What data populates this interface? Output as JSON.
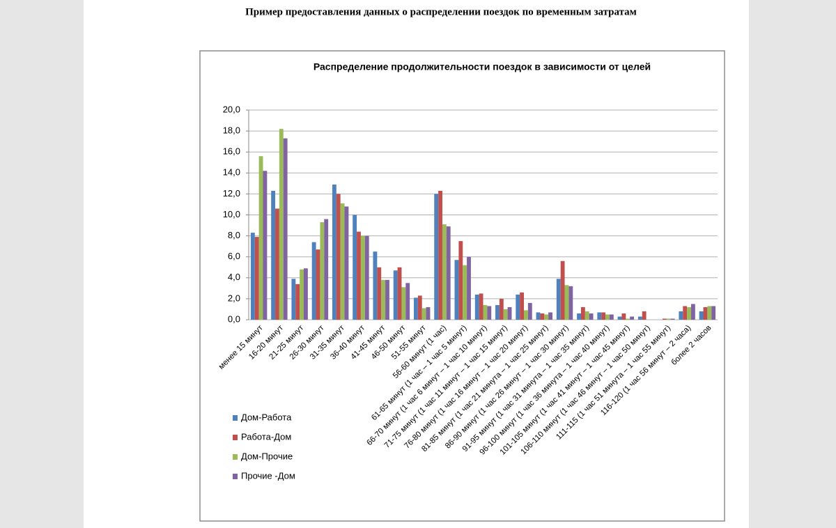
{
  "page_title": "Пример предоставления данных о распределении поездок по временным затратам",
  "chart_data": {
    "type": "bar",
    "title": "Распределение продолжительности поездок в зависимости от целей",
    "categories": [
      "менее 15 минут",
      "16-20 минут",
      "21-25 минут",
      "26-30 минут",
      "31-35 минут",
      "36-40 минут",
      "41-45 минут",
      "46-50 минут",
      "51-55 минут",
      "56-60 минут (1 час)",
      "61-65 минут (1 час – 1 час 5 минут)",
      "66-70 минут (1 час 6 минут – 1 час 10 минут)",
      "71-75 минут (1 час 11 минут – 1 час 15 минут)",
      "76-80 минут (1 час 16 минут – 1 час 20 минут)",
      "81-85 минут (1 час 21 минута – 1 час 25 минут)",
      "86-90 минут (1 час 26 минут – 1 час 30 минут)",
      "91-95 минут (1 час 31 минута – 1 час 35 минут)",
      "96-100 минут (1 час 36 минута – 1 час 40 минут)",
      "101-105 минут (1 час 41 минут – 1 час 45 минут)",
      "106-110 минут (1 час 46 минут – 1 час 50 минут)",
      "111-115 (1 час 51 минута – 1 час 55 минут)",
      "116-120 (1 час 56 минут – 2 часа)",
      "более 2 часов"
    ],
    "series": [
      {
        "name": "Дом-Работа",
        "color": "#4f81bd",
        "values": [
          8.3,
          12.3,
          3.9,
          7.4,
          12.9,
          10.0,
          6.5,
          4.7,
          2.1,
          12.0,
          5.7,
          2.4,
          1.4,
          2.4,
          0.7,
          3.9,
          0.6,
          0.7,
          0.3,
          0.3,
          0.0,
          0.8,
          0.8
        ]
      },
      {
        "name": "Работа-Дом",
        "color": "#c0504d",
        "values": [
          7.9,
          10.6,
          3.4,
          6.7,
          12.0,
          8.4,
          5.0,
          5.0,
          2.3,
          12.3,
          7.5,
          2.5,
          2.0,
          2.6,
          0.6,
          5.6,
          1.2,
          0.7,
          0.6,
          0.8,
          0.1,
          1.3,
          1.2
        ]
      },
      {
        "name": "Дом-Прочие",
        "color": "#9bbb59",
        "values": [
          15.6,
          18.2,
          4.8,
          9.3,
          11.1,
          8.0,
          3.8,
          3.1,
          1.1,
          9.1,
          5.2,
          1.4,
          1.0,
          0.9,
          0.5,
          3.3,
          0.8,
          0.5,
          0.1,
          0.0,
          0.1,
          1.2,
          1.3
        ]
      },
      {
        "name": "Прочие -Дом",
        "color": "#8064a2",
        "values": [
          14.2,
          17.3,
          4.9,
          9.6,
          10.8,
          8.0,
          3.8,
          3.5,
          1.2,
          8.9,
          6.0,
          1.3,
          1.2,
          1.6,
          0.7,
          3.2,
          0.6,
          0.5,
          0.3,
          0.0,
          0.1,
          1.5,
          1.3
        ]
      }
    ],
    "ylim": [
      0,
      20
    ],
    "yticks": [
      {
        "value": 0,
        "label": "0,0"
      },
      {
        "value": 2,
        "label": "2,0"
      },
      {
        "value": 4,
        "label": "4,0"
      },
      {
        "value": 6,
        "label": "6,0"
      },
      {
        "value": 8,
        "label": "8,0"
      },
      {
        "value": 10,
        "label": "10,0"
      },
      {
        "value": 12,
        "label": "12,0"
      },
      {
        "value": 14,
        "label": "14,0"
      },
      {
        "value": 16,
        "label": "16,0"
      },
      {
        "value": 18,
        "label": "18,0"
      },
      {
        "value": 20,
        "label": "20,0"
      }
    ],
    "grid": true
  }
}
